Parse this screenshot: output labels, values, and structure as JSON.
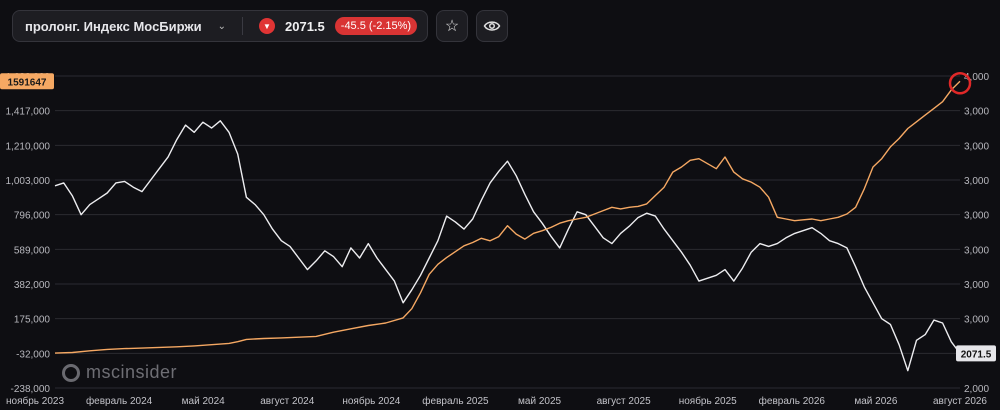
{
  "header": {
    "instrument": "пролонг. Индекс МосБиржи",
    "price": "2071.5",
    "change": "-45.5 (-2.15%)"
  },
  "icons": {
    "dropdown": "chevron-down-icon",
    "direction": "triangle-down-icon",
    "favorite": "star-icon",
    "visibility": "eye-icon",
    "brand": "msc-logo-icon"
  },
  "watermark": "mscinsider",
  "colors": {
    "background": "#0e0e12",
    "white_series": "#ededf0",
    "orange_series": "#f5a863",
    "down": "#e03434",
    "marker": "#e02828"
  },
  "chart_data": {
    "type": "line",
    "x_labels": [
      "ноябрь 2023",
      "февраль 2024",
      "май 2024",
      "август 2024",
      "ноябрь 2024",
      "февраль 2025",
      "май 2025",
      "август 2025",
      "ноябрь 2025",
      "февраль 2026",
      "май 2026",
      "август 2026"
    ],
    "left_axis": {
      "ticks": [
        "1,623,000",
        "1,417,000",
        "1,210,000",
        "1,003,000",
        "796,000",
        "589,000",
        "382,000",
        "175,000",
        "-32,000",
        "-238,000"
      ],
      "range": [
        -238000,
        1623000
      ]
    },
    "right_axis": {
      "ticks": [
        "4,000",
        "3,000",
        "3,000",
        "3,000",
        "3,000",
        "3,000",
        "3,000",
        "3,000",
        "2,000",
        "2,000"
      ],
      "range": [
        1880,
        4040
      ]
    },
    "grid": "horizontal",
    "last_value_labels": {
      "left": "1591647",
      "right": "2071.5"
    },
    "series": [
      {
        "color": "white",
        "axis": "right",
        "points": [
          [
            0,
            3280
          ],
          [
            0.01,
            3300
          ],
          [
            0.02,
            3210
          ],
          [
            0.03,
            3080
          ],
          [
            0.04,
            3150
          ],
          [
            0.05,
            3190
          ],
          [
            0.06,
            3230
          ],
          [
            0.07,
            3300
          ],
          [
            0.08,
            3310
          ],
          [
            0.09,
            3270
          ],
          [
            0.1,
            3240
          ],
          [
            0.11,
            3320
          ],
          [
            0.12,
            3400
          ],
          [
            0.13,
            3480
          ],
          [
            0.14,
            3600
          ],
          [
            0.15,
            3700
          ],
          [
            0.16,
            3650
          ],
          [
            0.17,
            3720
          ],
          [
            0.18,
            3680
          ],
          [
            0.19,
            3730
          ],
          [
            0.2,
            3650
          ],
          [
            0.21,
            3500
          ],
          [
            0.22,
            3200
          ],
          [
            0.23,
            3150
          ],
          [
            0.24,
            3080
          ],
          [
            0.25,
            2980
          ],
          [
            0.26,
            2900
          ],
          [
            0.27,
            2860
          ],
          [
            0.28,
            2780
          ],
          [
            0.29,
            2700
          ],
          [
            0.3,
            2760
          ],
          [
            0.31,
            2830
          ],
          [
            0.32,
            2790
          ],
          [
            0.33,
            2720
          ],
          [
            0.34,
            2850
          ],
          [
            0.35,
            2780
          ],
          [
            0.36,
            2880
          ],
          [
            0.37,
            2780
          ],
          [
            0.38,
            2700
          ],
          [
            0.39,
            2620
          ],
          [
            0.4,
            2470
          ],
          [
            0.41,
            2560
          ],
          [
            0.42,
            2660
          ],
          [
            0.43,
            2780
          ],
          [
            0.44,
            2900
          ],
          [
            0.45,
            3070
          ],
          [
            0.46,
            3030
          ],
          [
            0.47,
            2980
          ],
          [
            0.48,
            3050
          ],
          [
            0.49,
            3180
          ],
          [
            0.5,
            3300
          ],
          [
            0.51,
            3380
          ],
          [
            0.52,
            3450
          ],
          [
            0.53,
            3350
          ],
          [
            0.54,
            3220
          ],
          [
            0.55,
            3100
          ],
          [
            0.56,
            3020
          ],
          [
            0.57,
            2930
          ],
          [
            0.58,
            2850
          ],
          [
            0.59,
            2980
          ],
          [
            0.6,
            3100
          ],
          [
            0.61,
            3080
          ],
          [
            0.62,
            3000
          ],
          [
            0.63,
            2920
          ],
          [
            0.64,
            2880
          ],
          [
            0.65,
            2950
          ],
          [
            0.66,
            3000
          ],
          [
            0.67,
            3060
          ],
          [
            0.68,
            3090
          ],
          [
            0.69,
            3070
          ],
          [
            0.7,
            2980
          ],
          [
            0.71,
            2900
          ],
          [
            0.72,
            2820
          ],
          [
            0.73,
            2730
          ],
          [
            0.74,
            2620
          ],
          [
            0.75,
            2640
          ],
          [
            0.76,
            2660
          ],
          [
            0.77,
            2700
          ],
          [
            0.78,
            2620
          ],
          [
            0.79,
            2710
          ],
          [
            0.8,
            2820
          ],
          [
            0.81,
            2880
          ],
          [
            0.82,
            2860
          ],
          [
            0.83,
            2880
          ],
          [
            0.84,
            2920
          ],
          [
            0.85,
            2950
          ],
          [
            0.86,
            2970
          ],
          [
            0.87,
            2990
          ],
          [
            0.88,
            2950
          ],
          [
            0.89,
            2900
          ],
          [
            0.9,
            2880
          ],
          [
            0.91,
            2850
          ],
          [
            0.92,
            2720
          ],
          [
            0.93,
            2580
          ],
          [
            0.94,
            2470
          ],
          [
            0.95,
            2360
          ],
          [
            0.96,
            2320
          ],
          [
            0.97,
            2180
          ],
          [
            0.98,
            2000
          ],
          [
            0.99,
            2210
          ],
          [
            1.0,
            2250
          ],
          [
            1.01,
            2350
          ],
          [
            1.02,
            2330
          ],
          [
            1.03,
            2200
          ],
          [
            1.04,
            2120
          ]
        ]
      },
      {
        "color": "orange",
        "axis": "left",
        "points": [
          [
            0,
            -30000
          ],
          [
            0.02,
            -26000
          ],
          [
            0.04,
            -16000
          ],
          [
            0.06,
            -8000
          ],
          [
            0.08,
            -3000
          ],
          [
            0.1,
            0
          ],
          [
            0.12,
            4000
          ],
          [
            0.14,
            8000
          ],
          [
            0.16,
            13000
          ],
          [
            0.18,
            20000
          ],
          [
            0.2,
            28000
          ],
          [
            0.21,
            38000
          ],
          [
            0.22,
            52000
          ],
          [
            0.24,
            57000
          ],
          [
            0.26,
            61000
          ],
          [
            0.28,
            65000
          ],
          [
            0.3,
            70000
          ],
          [
            0.32,
            95000
          ],
          [
            0.34,
            115000
          ],
          [
            0.36,
            135000
          ],
          [
            0.38,
            150000
          ],
          [
            0.4,
            180000
          ],
          [
            0.41,
            235000
          ],
          [
            0.42,
            330000
          ],
          [
            0.43,
            440000
          ],
          [
            0.44,
            500000
          ],
          [
            0.45,
            540000
          ],
          [
            0.46,
            575000
          ],
          [
            0.47,
            610000
          ],
          [
            0.48,
            630000
          ],
          [
            0.49,
            655000
          ],
          [
            0.5,
            640000
          ],
          [
            0.51,
            665000
          ],
          [
            0.52,
            730000
          ],
          [
            0.53,
            680000
          ],
          [
            0.54,
            650000
          ],
          [
            0.55,
            685000
          ],
          [
            0.56,
            700000
          ],
          [
            0.57,
            720000
          ],
          [
            0.58,
            745000
          ],
          [
            0.59,
            760000
          ],
          [
            0.6,
            770000
          ],
          [
            0.61,
            780000
          ],
          [
            0.62,
            800000
          ],
          [
            0.63,
            820000
          ],
          [
            0.64,
            840000
          ],
          [
            0.65,
            830000
          ],
          [
            0.66,
            840000
          ],
          [
            0.67,
            845000
          ],
          [
            0.68,
            860000
          ],
          [
            0.69,
            910000
          ],
          [
            0.7,
            960000
          ],
          [
            0.71,
            1050000
          ],
          [
            0.72,
            1080000
          ],
          [
            0.73,
            1120000
          ],
          [
            0.74,
            1130000
          ],
          [
            0.75,
            1100000
          ],
          [
            0.76,
            1070000
          ],
          [
            0.77,
            1140000
          ],
          [
            0.78,
            1050000
          ],
          [
            0.79,
            1010000
          ],
          [
            0.8,
            990000
          ],
          [
            0.81,
            960000
          ],
          [
            0.82,
            900000
          ],
          [
            0.83,
            780000
          ],
          [
            0.84,
            770000
          ],
          [
            0.85,
            760000
          ],
          [
            0.86,
            765000
          ],
          [
            0.87,
            770000
          ],
          [
            0.88,
            760000
          ],
          [
            0.89,
            770000
          ],
          [
            0.9,
            780000
          ],
          [
            0.91,
            800000
          ],
          [
            0.92,
            840000
          ],
          [
            0.93,
            950000
          ],
          [
            0.94,
            1080000
          ],
          [
            0.95,
            1130000
          ],
          [
            0.96,
            1200000
          ],
          [
            0.97,
            1250000
          ],
          [
            0.98,
            1310000
          ],
          [
            0.99,
            1350000
          ],
          [
            1.0,
            1390000
          ],
          [
            1.01,
            1430000
          ],
          [
            1.02,
            1470000
          ],
          [
            1.03,
            1540000
          ],
          [
            1.04,
            1591647
          ]
        ]
      }
    ]
  }
}
